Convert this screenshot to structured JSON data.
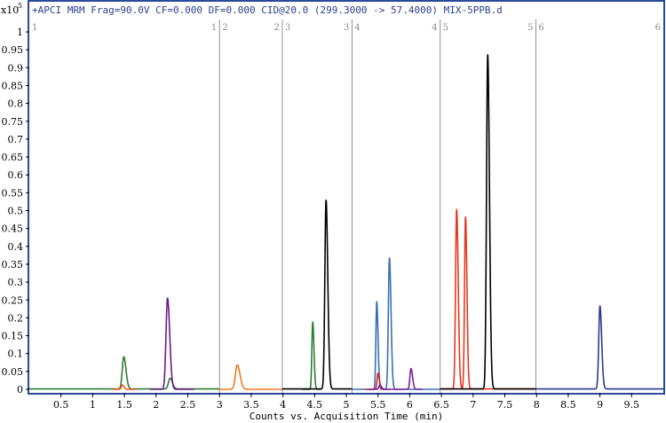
{
  "chart_data": {
    "type": "line",
    "title": "+APCI MRM Frag=90.0V CF=0.000 DF=0.000 CID@20.0 (299.3000 -> 57.4000) MIX-5PPB.d",
    "xlabel": "Counts vs. Acquisition Time (min)",
    "y_scale_base": "x10",
    "y_scale_exp": "5",
    "xlim": [
      0.0,
      10.0
    ],
    "ylim": [
      -0.01,
      1.05
    ],
    "x_ticks": [
      "0.5",
      "1",
      "1.5",
      "2",
      "2.5",
      "3",
      "3.5",
      "4",
      "4.5",
      "5",
      "5.5",
      "6",
      "6.5",
      "7",
      "7.5",
      "8",
      "8.5",
      "9",
      "9.5"
    ],
    "x_tick_values": [
      0.5,
      1,
      1.5,
      2,
      2.5,
      3,
      3.5,
      4,
      4.5,
      5,
      5.5,
      6,
      6.5,
      7,
      7.5,
      8,
      8.5,
      9,
      9.5
    ],
    "y_ticks": [
      "0",
      "0.05",
      "0.1",
      "0.15",
      "0.2",
      "0.25",
      "0.3",
      "0.35",
      "0.4",
      "0.45",
      "0.5",
      "0.55",
      "0.6",
      "0.65",
      "0.7",
      "0.75",
      "0.8",
      "0.85",
      "0.9",
      "0.95",
      "1"
    ],
    "y_tick_values": [
      0,
      0.05,
      0.1,
      0.15,
      0.2,
      0.25,
      0.3,
      0.35,
      0.4,
      0.45,
      0.5,
      0.55,
      0.6,
      0.65,
      0.7,
      0.75,
      0.8,
      0.85,
      0.9,
      0.95,
      1.0
    ],
    "segment_boundaries": [
      3.0,
      3.99,
      5.09,
      6.48,
      7.99
    ],
    "segment_labels": [
      {
        "start": "1",
        "end": "1",
        "x_start": 0.0,
        "x_end": 3.0
      },
      {
        "start": "2",
        "end": "2",
        "x_start": 3.0,
        "x_end": 3.99
      },
      {
        "start": "3",
        "end": "3",
        "x_start": 3.99,
        "x_end": 5.09
      },
      {
        "start": "4",
        "end": "4",
        "x_start": 5.09,
        "x_end": 6.48
      },
      {
        "start": "5",
        "end": "5",
        "x_start": 6.48,
        "x_end": 7.99
      },
      {
        "start": "6",
        "end": "6",
        "x_start": 7.99,
        "x_end": 10.0
      }
    ],
    "grid": false,
    "series": [
      {
        "color": "#2e7d32",
        "baseline": 0.001,
        "x_range": [
          0.0,
          3.0
        ],
        "peaks": [
          {
            "rt": 1.49,
            "height": 0.09,
            "width": 0.028
          },
          {
            "rt": 2.22,
            "height": 0.03,
            "width": 0.03
          }
        ]
      },
      {
        "color": "#e85d1a",
        "baseline": 0.0,
        "x_range": [
          1.3,
          1.7
        ],
        "peaks": [
          {
            "rt": 1.47,
            "height": 0.012,
            "width": 0.02
          }
        ]
      },
      {
        "color": "#6a1b8a",
        "baseline": 0.0,
        "x_range": [
          1.9,
          2.6
        ],
        "peaks": [
          {
            "rt": 2.18,
            "height": 0.255,
            "width": 0.028
          }
        ]
      },
      {
        "color": "#f07a20",
        "baseline": 0.0,
        "x_range": [
          3.0,
          3.99
        ],
        "peaks": [
          {
            "rt": 3.28,
            "height": 0.068,
            "width": 0.035
          }
        ]
      },
      {
        "color": "#2e7d32",
        "baseline": 0.0,
        "x_range": [
          4.3,
          4.6
        ],
        "peaks": [
          {
            "rt": 4.47,
            "height": 0.188,
            "width": 0.016
          }
        ]
      },
      {
        "color": "#000000",
        "baseline": 0.001,
        "x_range": [
          3.99,
          5.09
        ],
        "peaks": [
          {
            "rt": 4.68,
            "height": 0.528,
            "width": 0.022
          }
        ]
      },
      {
        "color": "#3a6fb0",
        "baseline": 0.0,
        "x_range": [
          5.09,
          6.48
        ],
        "peaks": [
          {
            "rt": 5.48,
            "height": 0.245,
            "width": 0.016
          },
          {
            "rt": 5.68,
            "height": 0.367,
            "width": 0.02
          }
        ]
      },
      {
        "color": "#c62828",
        "baseline": 0.0,
        "x_range": [
          5.3,
          5.7
        ],
        "peaks": [
          {
            "rt": 5.5,
            "height": 0.045,
            "width": 0.018
          }
        ]
      },
      {
        "color": "#7b1fa2",
        "baseline": 0.0,
        "x_range": [
          5.35,
          6.2
        ],
        "peaks": [
          {
            "rt": 5.53,
            "height": 0.012,
            "width": 0.02
          },
          {
            "rt": 6.02,
            "height": 0.058,
            "width": 0.02
          }
        ]
      },
      {
        "color": "#e53920",
        "baseline": 0.001,
        "x_range": [
          6.48,
          7.99
        ],
        "peaks": [
          {
            "rt": 6.74,
            "height": 0.502,
            "width": 0.02
          },
          {
            "rt": 6.88,
            "height": 0.481,
            "width": 0.018
          }
        ]
      },
      {
        "color": "#000000",
        "baseline": 0.001,
        "x_range": [
          6.48,
          7.99
        ],
        "peaks": [
          {
            "rt": 7.23,
            "height": 0.935,
            "width": 0.022
          }
        ]
      },
      {
        "color": "#2b3a8c",
        "baseline": 0.001,
        "x_range": [
          7.99,
          10.0
        ],
        "peaks": [
          {
            "rt": 9.0,
            "height": 0.232,
            "width": 0.022
          }
        ]
      }
    ]
  }
}
